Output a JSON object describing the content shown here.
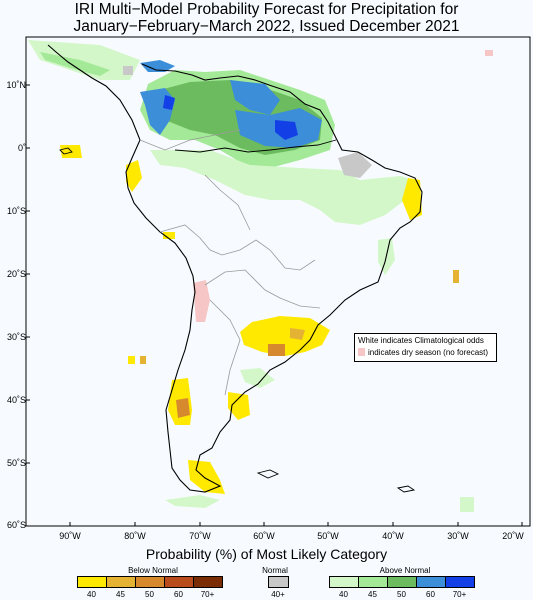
{
  "title": {
    "line1": "IRI Multi−Model Probability Forecast for Precipitation for",
    "line2": "January−February−March 2022, Issued December 2021"
  },
  "latitude_labels": [
    "10˚N",
    "0˚",
    "10˚S",
    "20˚S",
    "30˚S",
    "40˚S",
    "50˚S",
    "60˚S"
  ],
  "longitude_labels": [
    "90˚W",
    "80˚W",
    "70˚W",
    "60˚W",
    "50˚W",
    "40˚W",
    "30˚W",
    "20˚W"
  ],
  "note": {
    "line1": "White indicates Climatological odds",
    "line2": "indicates dry season (no forecast)"
  },
  "legend": {
    "title": "Probability (%) of Most Likely Category",
    "below_normal": {
      "label": "Below Normal",
      "ticks": [
        "40",
        "45",
        "50",
        "60",
        "70+"
      ],
      "colors": [
        "#ffe900",
        "#e4b333",
        "#d6892d",
        "#b84c1d",
        "#7a2d05"
      ]
    },
    "normal": {
      "label": "Normal",
      "ticks": [
        "40+"
      ],
      "colors": [
        "#c8c8c8"
      ]
    },
    "above_normal": {
      "label": "Above Normal",
      "ticks": [
        "40",
        "45",
        "50",
        "60",
        "70+"
      ],
      "colors": [
        "#d3f7c8",
        "#a4e998",
        "#6cbb5e",
        "#3c8ed8",
        "#1340e6"
      ]
    }
  },
  "colors": {
    "background": "#f7fbff",
    "dry_season": "#f6c6c6",
    "coast": "#000000",
    "border": "#9a9a9a"
  }
}
